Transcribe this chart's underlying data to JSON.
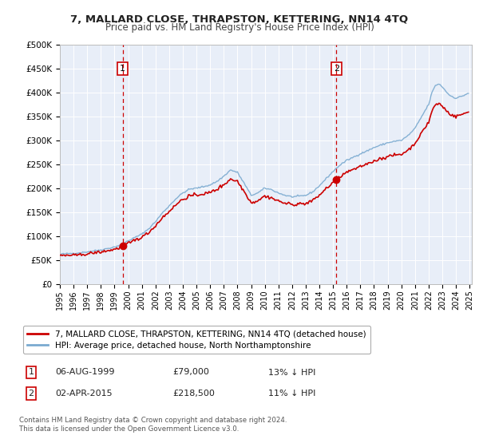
{
  "title": "7, MALLARD CLOSE, THRAPSTON, KETTERING, NN14 4TQ",
  "subtitle": "Price paid vs. HM Land Registry's House Price Index (HPI)",
  "ylim": [
    0,
    500000
  ],
  "yticks": [
    0,
    50000,
    100000,
    150000,
    200000,
    250000,
    300000,
    350000,
    400000,
    450000,
    500000
  ],
  "ytick_labels": [
    "£0",
    "£50K",
    "£100K",
    "£150K",
    "£200K",
    "£250K",
    "£300K",
    "£350K",
    "£400K",
    "£450K",
    "£500K"
  ],
  "background_color": "#ffffff",
  "plot_bg_color": "#e8eef8",
  "grid_color": "#ffffff",
  "sale_color": "#cc0000",
  "hpi_color": "#7aaad0",
  "sale_dot_color": "#cc0000",
  "vline_color": "#cc0000",
  "annotation_box_color": "#cc0000",
  "annotation_level": 450000,
  "sale1_price": 79000,
  "sale2_price": 218500,
  "legend_sale_label": "7, MALLARD CLOSE, THRAPSTON, KETTERING, NN14 4TQ (detached house)",
  "legend_hpi_label": "HPI: Average price, detached house, North Northamptonshire",
  "note1_num": "1",
  "note1_date": "06-AUG-1999",
  "note1_price": "£79,000",
  "note1_hpi": "13% ↓ HPI",
  "note2_num": "2",
  "note2_date": "02-APR-2015",
  "note2_price": "£218,500",
  "note2_hpi": "11% ↓ HPI",
  "footer1": "Contains HM Land Registry data © Crown copyright and database right 2024.",
  "footer2": "This data is licensed under the Open Government Licence v3.0."
}
